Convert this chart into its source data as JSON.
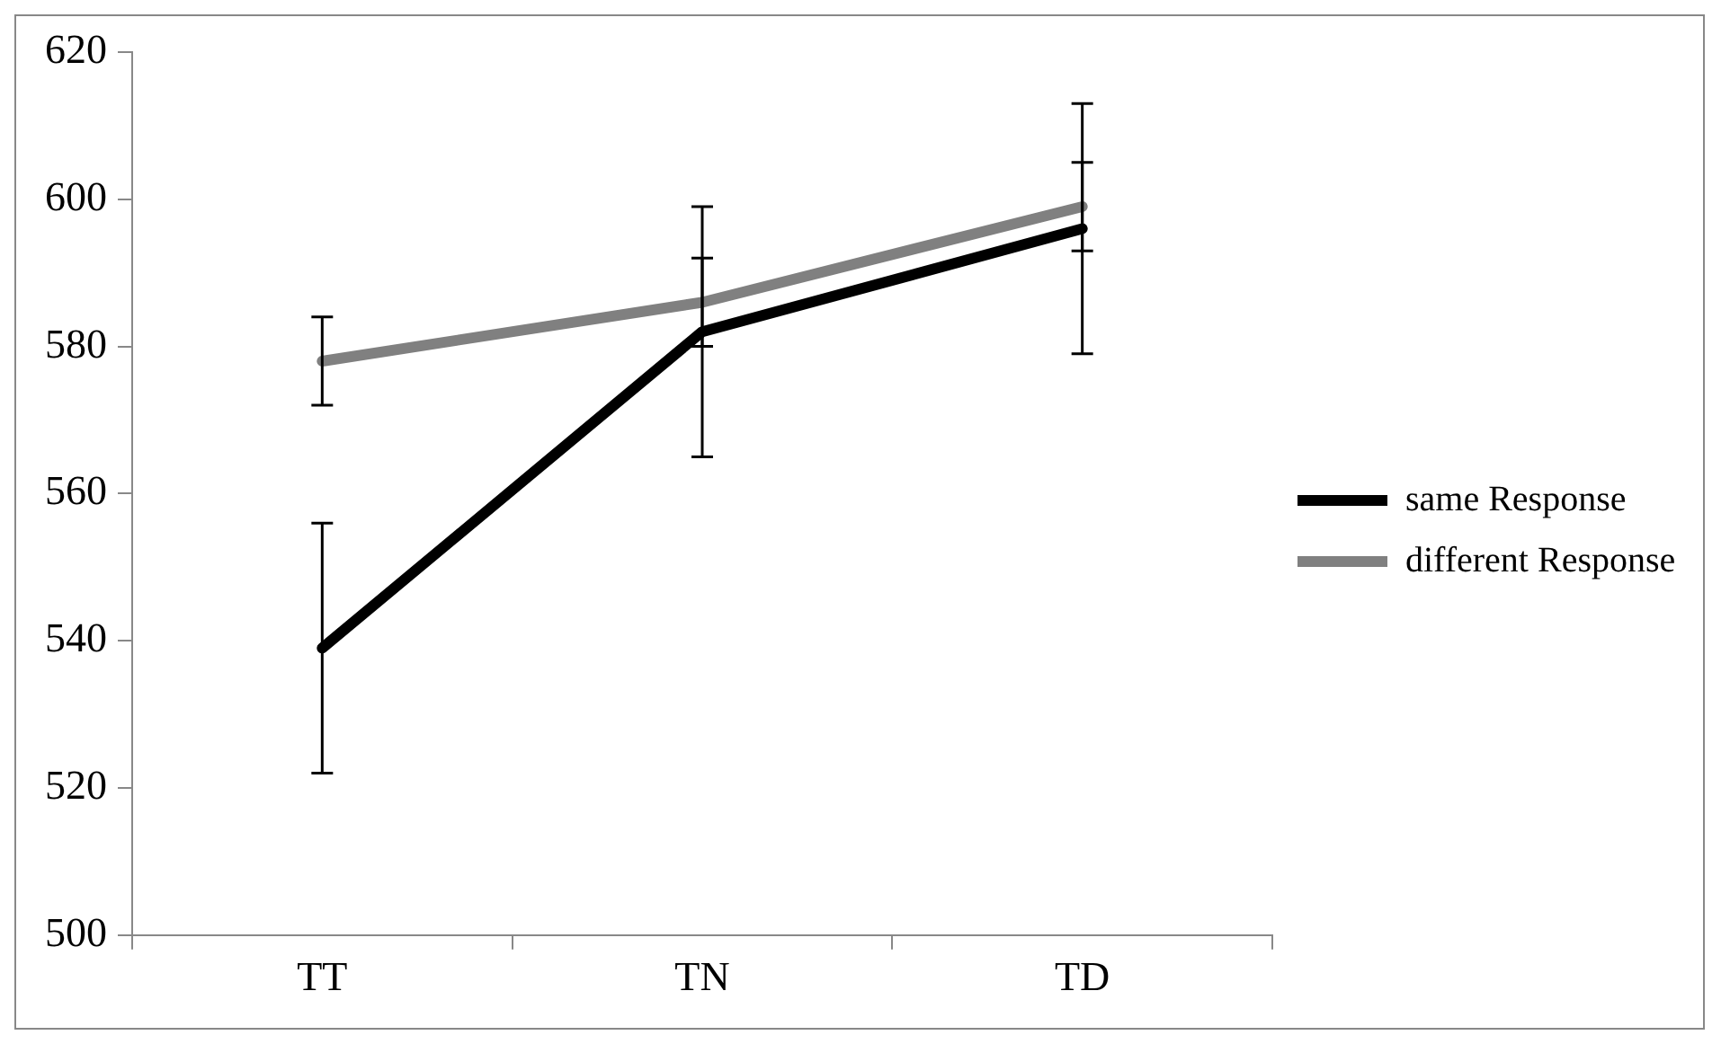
{
  "chart_data": {
    "type": "line",
    "categories": [
      "TT",
      "TN",
      "TD"
    ],
    "series": [
      {
        "name": "same Response",
        "color": "#000000",
        "values": [
          539,
          582,
          596
        ],
        "errors": [
          17,
          17,
          17
        ]
      },
      {
        "name": "different Response",
        "color": "#808080",
        "values": [
          578,
          586,
          599
        ],
        "errors": [
          6,
          6,
          6
        ]
      }
    ],
    "ylim": [
      500,
      620
    ],
    "yticks": [
      500,
      520,
      540,
      560,
      580,
      600,
      620
    ],
    "grid": false,
    "legend": "right",
    "marker": "none",
    "line_style": "solid"
  }
}
